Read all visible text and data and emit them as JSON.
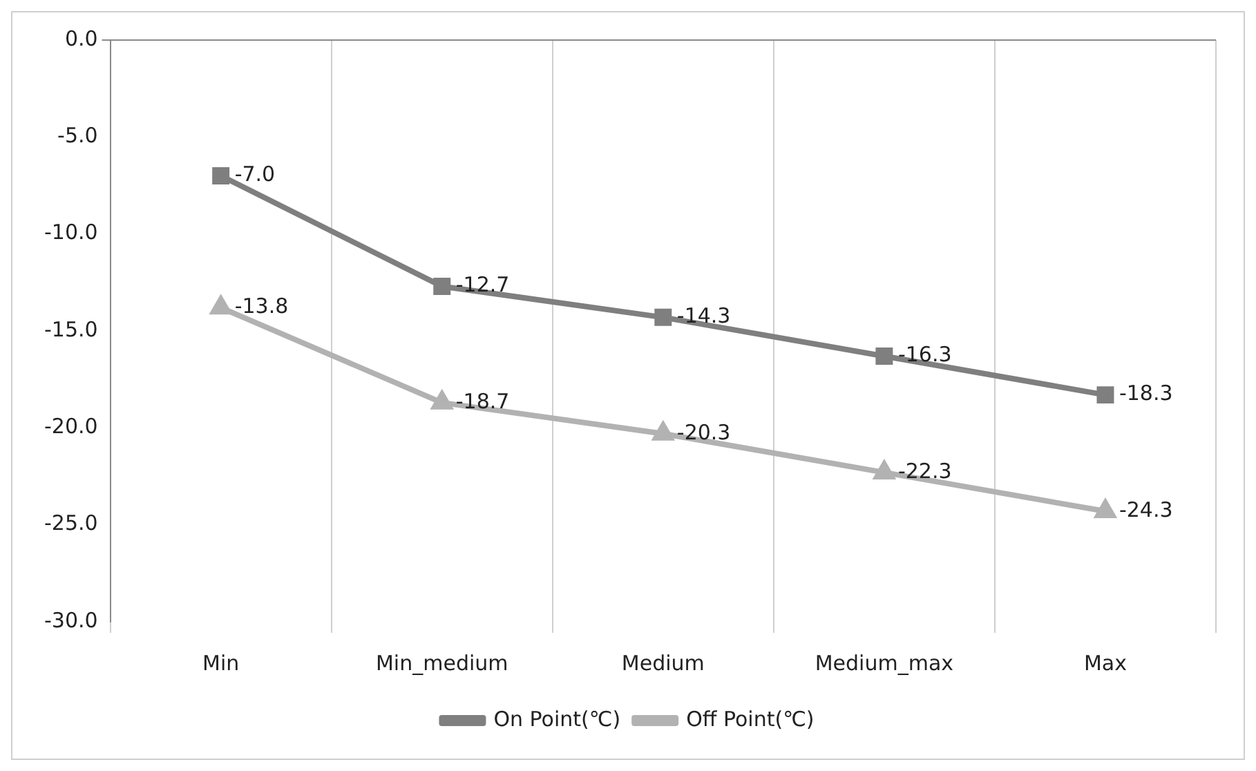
{
  "chart_data": {
    "type": "line",
    "categories": [
      "Min",
      "Min_medium",
      "Medium",
      "Medium_max",
      "Max"
    ],
    "series": [
      {
        "name": "On Point(℃)",
        "color": "#7f7f7f",
        "marker": "square",
        "values": [
          -7.0,
          -12.7,
          -14.3,
          -16.3,
          -18.3
        ],
        "value_labels": [
          "-7.0",
          "-12.7",
          "-14.3",
          "-16.3",
          "-18.3"
        ]
      },
      {
        "name": "Off Point(℃)",
        "color": "#b2b2b2",
        "marker": "triangle",
        "values": [
          -13.8,
          -18.7,
          -20.3,
          -22.3,
          -24.3
        ],
        "value_labels": [
          "-13.8",
          "-18.7",
          "-20.3",
          "-22.3",
          "-24.3"
        ]
      }
    ],
    "ylim": [
      -30,
      0
    ],
    "yticks": [
      {
        "value": -30,
        "label": "-30.0"
      },
      {
        "value": -25,
        "label": "-25.0"
      },
      {
        "value": -20,
        "label": "-20.0"
      },
      {
        "value": -15,
        "label": "-15.0"
      },
      {
        "value": -10,
        "label": "-10.0"
      },
      {
        "value": -5,
        "label": "-5.0"
      },
      {
        "value": 0,
        "label": "0.0"
      }
    ],
    "grid": "x",
    "legend": "bottom"
  }
}
